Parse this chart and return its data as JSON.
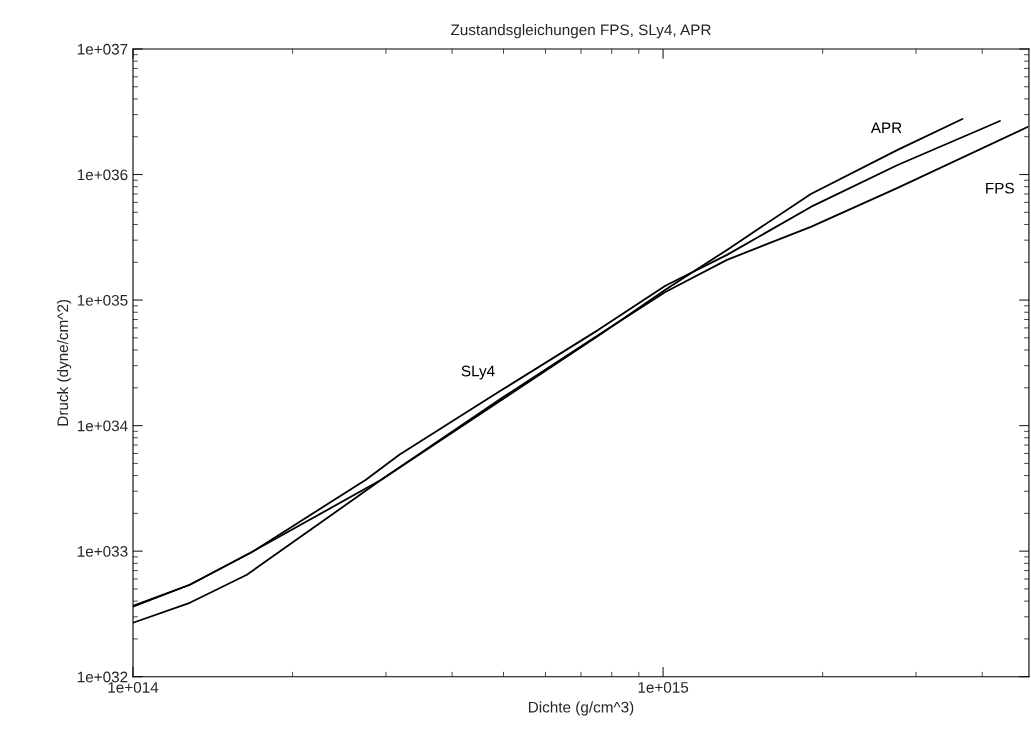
{
  "chart_data": {
    "type": "line",
    "title": "Zustandsgleichungen FPS, SLy4, APR",
    "xlabel": "Dichte (g/cm^3)",
    "ylabel": "Druck (dyne/cm^2)",
    "log": "xy",
    "grid": false,
    "line_style": "solid",
    "marker": "none",
    "xlim": [
      100000000000000.0,
      4900000000000000.0
    ],
    "xticks": [
      {
        "value": 100000000000000.0,
        "label": "1e+014"
      },
      {
        "value": 1000000000000000.0,
        "label": "1e+015"
      }
    ],
    "ylim": [
      1e+32,
      1e+37
    ],
    "yticks": [
      {
        "value": 1e+32,
        "label": "1e+032"
      },
      {
        "value": 1e+33,
        "label": "1e+033"
      },
      {
        "value": 1e+34,
        "label": "1e+034"
      },
      {
        "value": 1e+35,
        "label": "1e+035"
      },
      {
        "value": 1e+36,
        "label": "1e+036"
      },
      {
        "value": 1e+37,
        "label": "1e+037"
      }
    ],
    "series": [
      {
        "name": "FPS",
        "color": "#000000",
        "x": [
          100000000000000.0,
          128000000000000.0,
          168000000000000.0,
          294000000000000.0,
          490000000000000.0,
          755000000000000.0,
          1010000000000000.0,
          1320000000000000.0,
          1900000000000000.0,
          2770000000000000.0,
          4870000000000000.0
        ],
        "values": [
          3.67e+32,
          5.4e+32,
          9.9e+32,
          3.7e+33,
          1.6e+34,
          5.28e+34,
          1.16e+35,
          2.09e+35,
          3.83e+35,
          7.82e+35,
          2.39e+36
        ]
      },
      {
        "name": "SLy4",
        "color": "#000000",
        "x": [
          100000000000000.0,
          128000000000000.0,
          168000000000000.0,
          275000000000000.0,
          318000000000000.0,
          490000000000000.0,
          755000000000000.0,
          1010000000000000.0,
          1320000000000000.0,
          1900000000000000.0,
          2770000000000000.0,
          4320000000000000.0
        ],
        "values": [
          3.61e+32,
          5.4e+32,
          9.9e+32,
          3.7e+33,
          5.85e+33,
          1.86e+34,
          5.79e+34,
          1.3e+35,
          2.29e+35,
          5.52e+35,
          1.19e+36,
          2.67e+36
        ]
      },
      {
        "name": "APR",
        "color": "#000000",
        "x": [
          100000000000000.0,
          128000000000000.0,
          164000000000000.0,
          294000000000000.0,
          490000000000000.0,
          755000000000000.0,
          1010000000000000.0,
          1320000000000000.0,
          1900000000000000.0,
          2770000000000000.0,
          3670000000000000.0
        ],
        "values": [
          2.69e+32,
          3.88e+32,
          6.49e+32,
          3.7e+33,
          1.55e+34,
          5.19e+34,
          1.21e+35,
          2.51e+35,
          7e+35,
          1.57e+36,
          2.77e+36
        ]
      }
    ]
  }
}
